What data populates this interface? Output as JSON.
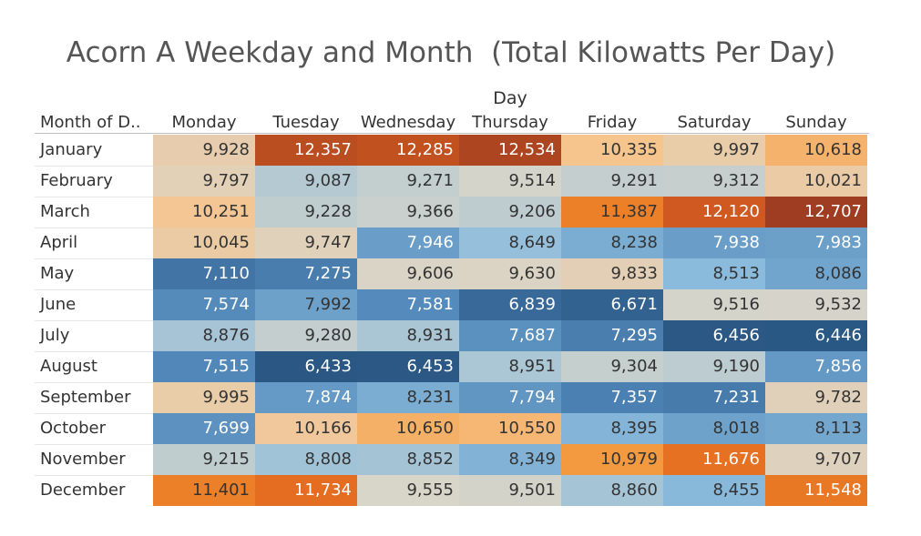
{
  "chart_data": {
    "type": "heatmap",
    "title": "Acorn A Weekday and Month  (Total Kilowatts Per Day)",
    "column_field": "Day",
    "row_field": "Month of D..",
    "columns": [
      "Monday",
      "Tuesday",
      "Wednesday",
      "Thursday",
      "Friday",
      "Saturday",
      "Sunday"
    ],
    "rows": [
      "January",
      "February",
      "March",
      "April",
      "May",
      "June",
      "July",
      "August",
      "September",
      "October",
      "November",
      "December"
    ],
    "values": [
      [
        9928,
        12357,
        12285,
        12534,
        10335,
        9997,
        10618
      ],
      [
        9797,
        9087,
        9271,
        9514,
        9291,
        9312,
        10021
      ],
      [
        10251,
        9228,
        9366,
        9206,
        11387,
        12120,
        12707
      ],
      [
        10045,
        9747,
        7946,
        8649,
        8238,
        7938,
        7983
      ],
      [
        7110,
        7275,
        9606,
        9630,
        9833,
        8513,
        8086
      ],
      [
        7574,
        7992,
        7581,
        6839,
        6671,
        9516,
        9532
      ],
      [
        8876,
        9280,
        8931,
        7687,
        7295,
        6456,
        6446
      ],
      [
        7515,
        6433,
        6453,
        8951,
        9304,
        9190,
        7856
      ],
      [
        9995,
        7874,
        8231,
        7794,
        7357,
        7231,
        9782
      ],
      [
        7699,
        10166,
        10650,
        10550,
        8395,
        8018,
        8113
      ],
      [
        9215,
        8808,
        8852,
        8349,
        10979,
        11676,
        9707
      ],
      [
        11401,
        11734,
        9555,
        9501,
        8860,
        8455,
        11548
      ]
    ],
    "color_scale": "blue-orange diverging",
    "colors": {
      "low": "#2a5783",
      "mid": "#d9d5c9",
      "high": "#9e3d22"
    }
  }
}
